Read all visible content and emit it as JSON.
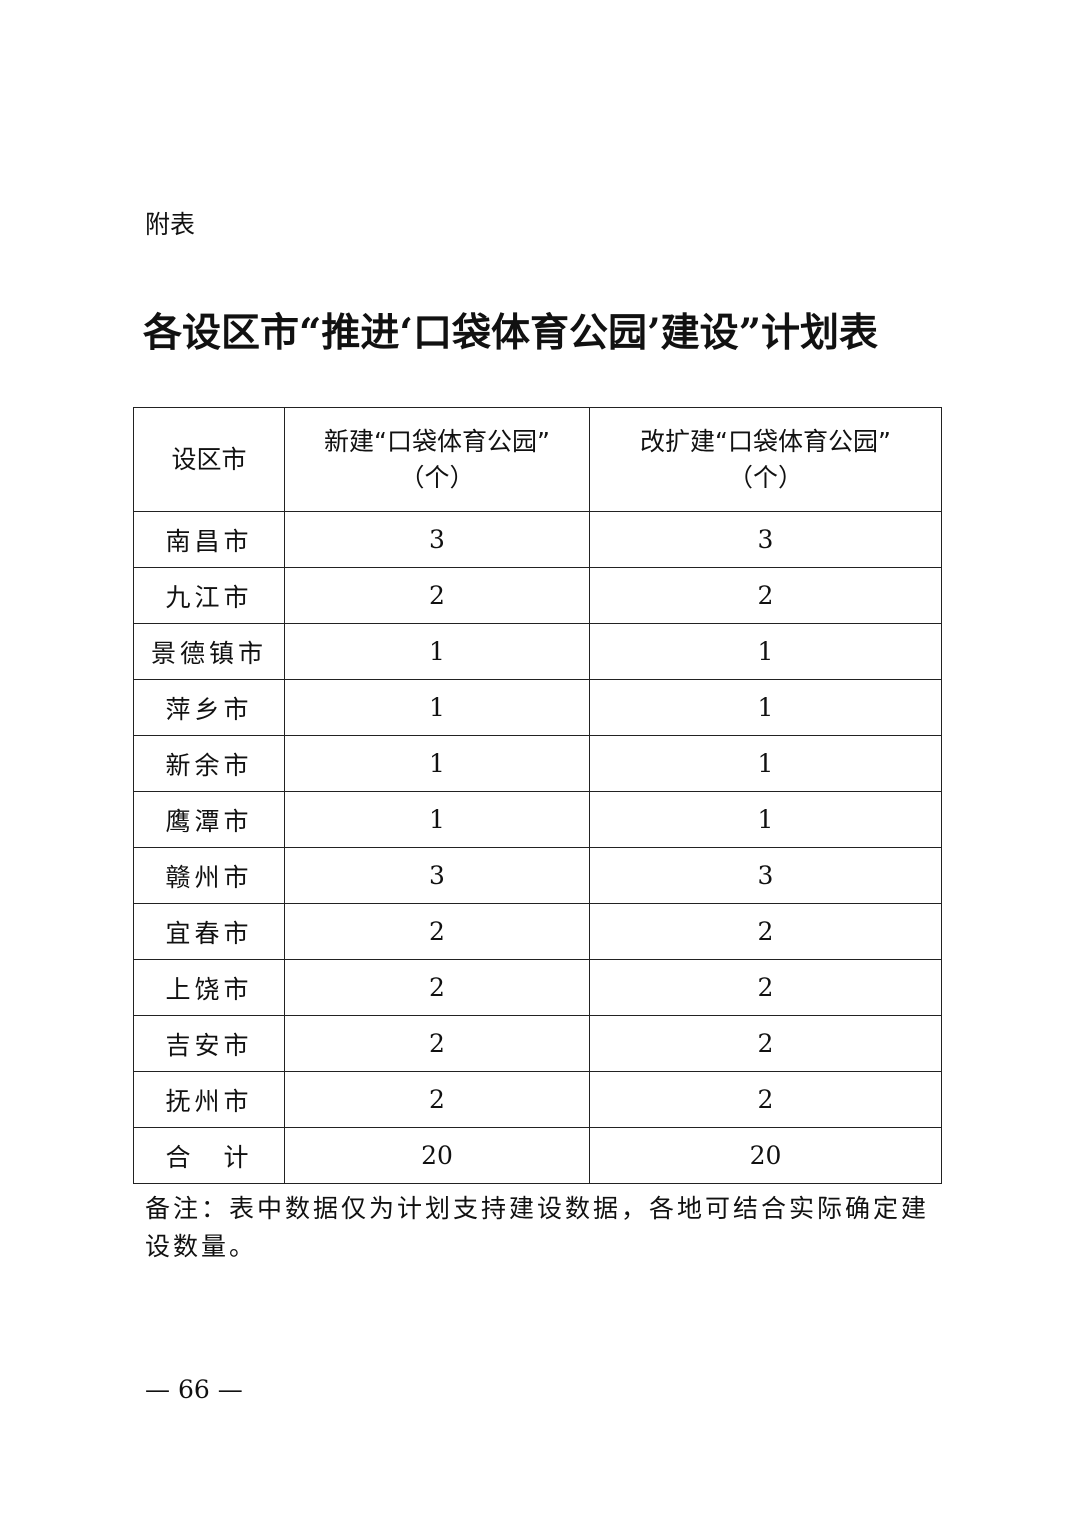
{
  "label": "附表",
  "title": "各设区市“推进‘口袋体育公园’建设”计划表",
  "table": {
    "headers": [
      {
        "line1": "设区市",
        "line2": ""
      },
      {
        "line1": "新建“口袋体育公园”",
        "line2": "（个）"
      },
      {
        "line1": "改扩建“口袋体育公园”",
        "line2": "（个）"
      }
    ],
    "rows": [
      [
        "南昌市",
        "3",
        "3"
      ],
      [
        "九江市",
        "2",
        "2"
      ],
      [
        "景德镇市",
        "1",
        "1"
      ],
      [
        "萍乡市",
        "1",
        "1"
      ],
      [
        "新余市",
        "1",
        "1"
      ],
      [
        "鹰潭市",
        "1",
        "1"
      ],
      [
        "赣州市",
        "3",
        "3"
      ],
      [
        "宜春市",
        "2",
        "2"
      ],
      [
        "上饶市",
        "2",
        "2"
      ],
      [
        "吉安市",
        "2",
        "2"
      ],
      [
        "抚州市",
        "2",
        "2"
      ],
      [
        "合　计",
        "20",
        "20"
      ]
    ]
  },
  "note": "备注：表中数据仅为计划支持建设数据，各地可结合实际确定建设数量。",
  "page_number": "— 66 —"
}
